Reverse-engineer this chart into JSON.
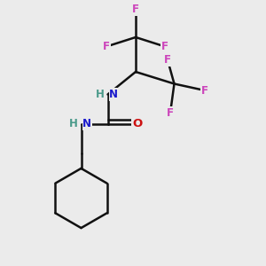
{
  "background_color": "#ebebeb",
  "atom_colors": {
    "C": "#000000",
    "H": "#4a9a8a",
    "N": "#1a1acc",
    "O": "#cc1111",
    "F": "#cc44bb"
  },
  "bond_color": "#111111",
  "bond_width": 1.8,
  "figsize": [
    3.0,
    3.0
  ],
  "dpi": 100,
  "xlim": [
    0,
    10
  ],
  "ylim": [
    0,
    10
  ]
}
